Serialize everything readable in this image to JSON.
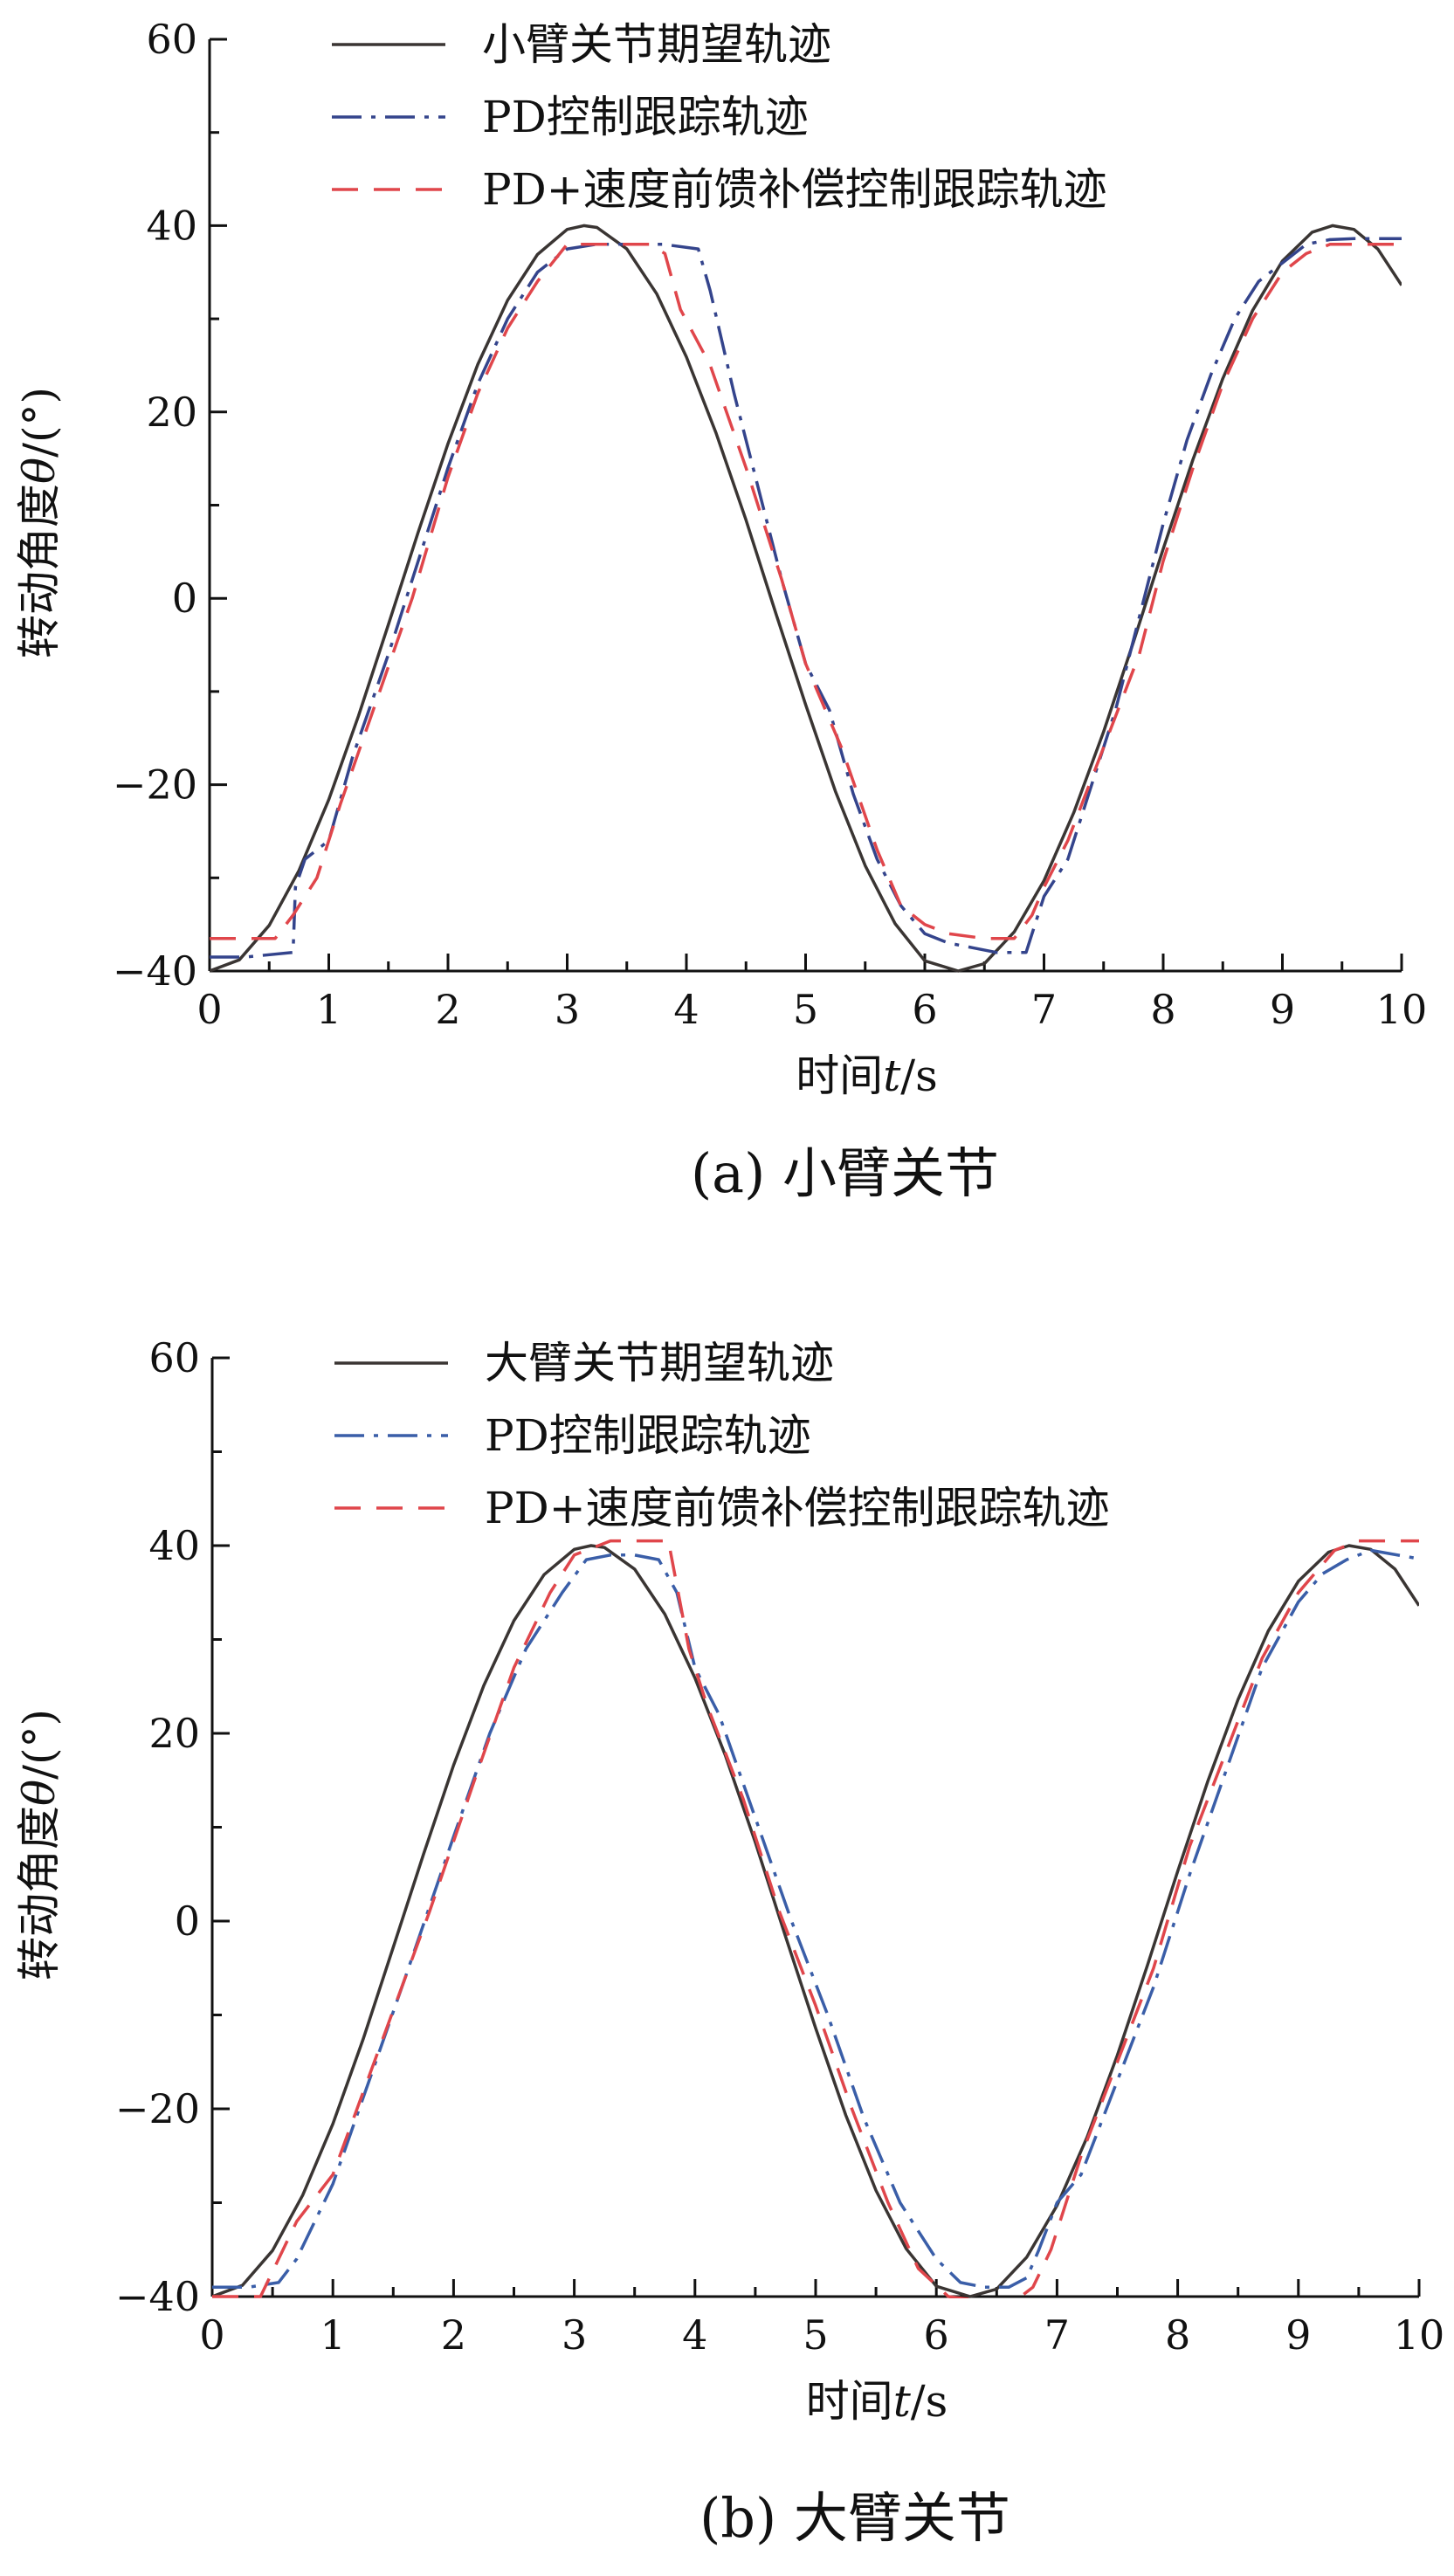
{
  "chart_data": [
    {
      "type": "line",
      "caption": "(a)  小臂关节",
      "xlabel_prefix": "时间",
      "xlabel_var": "t",
      "xlabel_unit": "/s",
      "ylabel_prefix": "转动角度",
      "ylabel_var": "θ",
      "ylabel_unit": "/(°)",
      "xlim": [
        0,
        10
      ],
      "ylim": [
        -40,
        60
      ],
      "xticks": [
        0,
        1,
        2,
        3,
        4,
        5,
        6,
        7,
        8,
        9,
        10
      ],
      "yticks": [
        -40,
        -20,
        0,
        20,
        40,
        60
      ],
      "ytick_labels": [
        "−40",
        "−20",
        "0",
        "20",
        "40",
        "60"
      ],
      "legend_placement": "top-left",
      "series": [
        {
          "name": "小臂关节期望轨迹",
          "color": "#3a3533",
          "dash": "solid",
          "x": [
            0,
            0.25,
            0.5,
            0.75,
            1,
            1.25,
            1.5,
            1.75,
            2,
            2.25,
            2.5,
            2.75,
            3,
            3.14,
            3.25,
            3.5,
            3.75,
            4,
            4.25,
            4.5,
            4.75,
            5,
            5.25,
            5.5,
            5.75,
            6,
            6.28,
            6.5,
            6.75,
            7,
            7.25,
            7.5,
            7.75,
            8,
            8.25,
            8.5,
            8.75,
            9,
            9.25,
            9.42,
            9.6,
            9.8,
            10
          ],
          "values": [
            -40,
            -38.8,
            -35.1,
            -29.2,
            -21.6,
            -12.6,
            -2.8,
            7.1,
            16.6,
            25.1,
            32,
            36.9,
            39.6,
            40,
            39.8,
            37.5,
            32.7,
            25.9,
            17.7,
            8.4,
            -1.6,
            -11.4,
            -20.7,
            -28.7,
            -34.9,
            -38.9,
            -40,
            -39.2,
            -35.8,
            -30.3,
            -23,
            -14.3,
            -4.7,
            5.3,
            14.9,
            23.6,
            30.9,
            36.2,
            39.3,
            40,
            39.6,
            37.5,
            33.6
          ]
        },
        {
          "name": "PD控制跟踪轨迹",
          "color": "#34448c",
          "dash": "dashdot",
          "x": [
            0,
            0.3,
            0.7,
            0.72,
            0.8,
            1,
            1.2,
            1.5,
            1.75,
            2,
            2.25,
            2.5,
            2.75,
            3,
            3.25,
            3.5,
            3.8,
            4.1,
            4.2,
            4.4,
            4.6,
            4.8,
            5,
            5.2,
            5.4,
            5.6,
            5.8,
            6,
            6.2,
            6.4,
            6.6,
            6.85,
            6.9,
            7,
            7.2,
            7.4,
            7.6,
            7.8,
            8,
            8.2,
            8.4,
            8.6,
            8.8,
            9,
            9.2,
            9.4,
            9.6,
            10
          ],
          "values": [
            -38.5,
            -38.5,
            -38,
            -31,
            -28,
            -26,
            -17,
            -6,
            4,
            14,
            23,
            30,
            35,
            37.5,
            38,
            38,
            38,
            37.5,
            33,
            22,
            12,
            2,
            -7,
            -12,
            -21,
            -28,
            -33,
            -36,
            -37,
            -37.5,
            -38,
            -38,
            -36,
            -32,
            -28,
            -20,
            -12,
            -2,
            8,
            17,
            24,
            30,
            34,
            36,
            38,
            38.5,
            38.6,
            38.6
          ]
        },
        {
          "name": "PD+速度前馈补偿控制跟踪轨迹",
          "color": "#e0464b",
          "dash": "dashed",
          "x": [
            0,
            0.3,
            0.55,
            0.7,
            0.9,
            1.1,
            1.4,
            1.7,
            2,
            2.25,
            2.5,
            2.75,
            3,
            3.2,
            3.5,
            3.7,
            3.82,
            3.95,
            4.2,
            4.5,
            4.8,
            5,
            5.3,
            5.6,
            5.8,
            6,
            6.2,
            6.5,
            6.75,
            6.9,
            7,
            7.2,
            7.5,
            7.8,
            8,
            8.25,
            8.5,
            8.75,
            9,
            9.2,
            9.4,
            9.6,
            10
          ],
          "values": [
            -36.5,
            -36.5,
            -36.5,
            -34,
            -30,
            -22,
            -11,
            0,
            13,
            22,
            29,
            34,
            38,
            38,
            38,
            38,
            37,
            31,
            25,
            14,
            2,
            -7,
            -16,
            -27,
            -33,
            -35,
            -36,
            -36.5,
            -36.5,
            -34,
            -31,
            -26,
            -16,
            -6,
            4,
            14,
            23,
            30,
            35,
            37,
            38,
            38,
            38
          ]
        }
      ]
    },
    {
      "type": "line",
      "caption": "(b)  大臂关节",
      "xlabel_prefix": "时间",
      "xlabel_var": "t",
      "xlabel_unit": "/s",
      "ylabel_prefix": "转动角度",
      "ylabel_var": "θ",
      "ylabel_unit": "/(°)",
      "xlim": [
        0,
        10
      ],
      "ylim": [
        -40,
        60
      ],
      "xticks": [
        0,
        1,
        2,
        3,
        4,
        5,
        6,
        7,
        8,
        9,
        10
      ],
      "yticks": [
        -40,
        -20,
        0,
        20,
        40,
        60
      ],
      "ytick_labels": [
        "−40",
        "−20",
        "0",
        "20",
        "40",
        "60"
      ],
      "legend_placement": "top-left",
      "series": [
        {
          "name": "大臂关节期望轨迹",
          "color": "#3a3533",
          "dash": "solid",
          "x": [
            0,
            0.25,
            0.5,
            0.75,
            1,
            1.25,
            1.5,
            1.75,
            2,
            2.25,
            2.5,
            2.75,
            3,
            3.14,
            3.25,
            3.5,
            3.75,
            4,
            4.25,
            4.5,
            4.75,
            5,
            5.25,
            5.5,
            5.75,
            6,
            6.28,
            6.5,
            6.75,
            7,
            7.25,
            7.5,
            7.75,
            8,
            8.25,
            8.5,
            8.75,
            9,
            9.25,
            9.42,
            9.6,
            9.8,
            10
          ],
          "values": [
            -40,
            -38.8,
            -35.1,
            -29.2,
            -21.6,
            -12.6,
            -2.8,
            7.1,
            16.6,
            25.1,
            32,
            36.9,
            39.6,
            40,
            39.8,
            37.5,
            32.7,
            25.9,
            17.7,
            8.4,
            -1.6,
            -11.4,
            -20.7,
            -28.7,
            -34.9,
            -38.9,
            -40,
            -39.2,
            -35.8,
            -30.3,
            -23,
            -14.3,
            -4.7,
            5.3,
            14.9,
            23.6,
            30.9,
            36.2,
            39.3,
            40,
            39.6,
            37.5,
            33.6
          ]
        },
        {
          "name": "PD控制跟踪轨迹",
          "color": "#3a5ea8",
          "dash": "dashdot",
          "x": [
            0,
            0.3,
            0.55,
            0.7,
            1,
            1.3,
            1.6,
            2,
            2.3,
            2.6,
            2.9,
            3.1,
            3.3,
            3.5,
            3.7,
            3.85,
            4,
            4.2,
            4.5,
            4.8,
            5.1,
            5.4,
            5.7,
            6,
            6.2,
            6.4,
            6.6,
            6.75,
            6.85,
            7,
            7.2,
            7.5,
            7.8,
            8.1,
            8.4,
            8.7,
            9,
            9.2,
            9.4,
            9.6,
            10
          ],
          "values": [
            -39,
            -39,
            -38.5,
            -36,
            -28,
            -17,
            -6,
            9,
            20,
            29,
            35,
            38.5,
            39,
            39,
            38.5,
            35,
            27,
            22,
            11,
            0,
            -10,
            -21,
            -30,
            -36,
            -38.5,
            -39,
            -39,
            -38,
            -35,
            -30,
            -27,
            -17,
            -7,
            5,
            16,
            27,
            34,
            37,
            38.5,
            39.5,
            38.6
          ]
        },
        {
          "name": "PD+速度前馈补偿控制跟踪轨迹",
          "color": "#e0464b",
          "dash": "dashed",
          "x": [
            0,
            0.4,
            0.55,
            0.7,
            1,
            1.4,
            1.8,
            2.2,
            2.5,
            2.8,
            3,
            3.3,
            3.6,
            3.78,
            3.95,
            4.1,
            4.4,
            4.7,
            5,
            5.3,
            5.6,
            5.85,
            6.1,
            6.4,
            6.65,
            6.8,
            6.95,
            7.2,
            7.5,
            7.8,
            8.1,
            8.4,
            8.7,
            9,
            9.3,
            9.5,
            10
          ],
          "values": [
            -40,
            -40,
            -36,
            -32,
            -27,
            -13,
            1,
            16,
            27,
            35,
            39,
            40.5,
            40.5,
            40.5,
            29,
            23,
            13,
            1,
            -9,
            -20,
            -30,
            -37,
            -40,
            -40.5,
            -40.5,
            -39,
            -35,
            -25,
            -15,
            -5,
            8,
            18,
            28,
            35,
            39.5,
            40.5,
            40.5
          ]
        }
      ]
    }
  ]
}
